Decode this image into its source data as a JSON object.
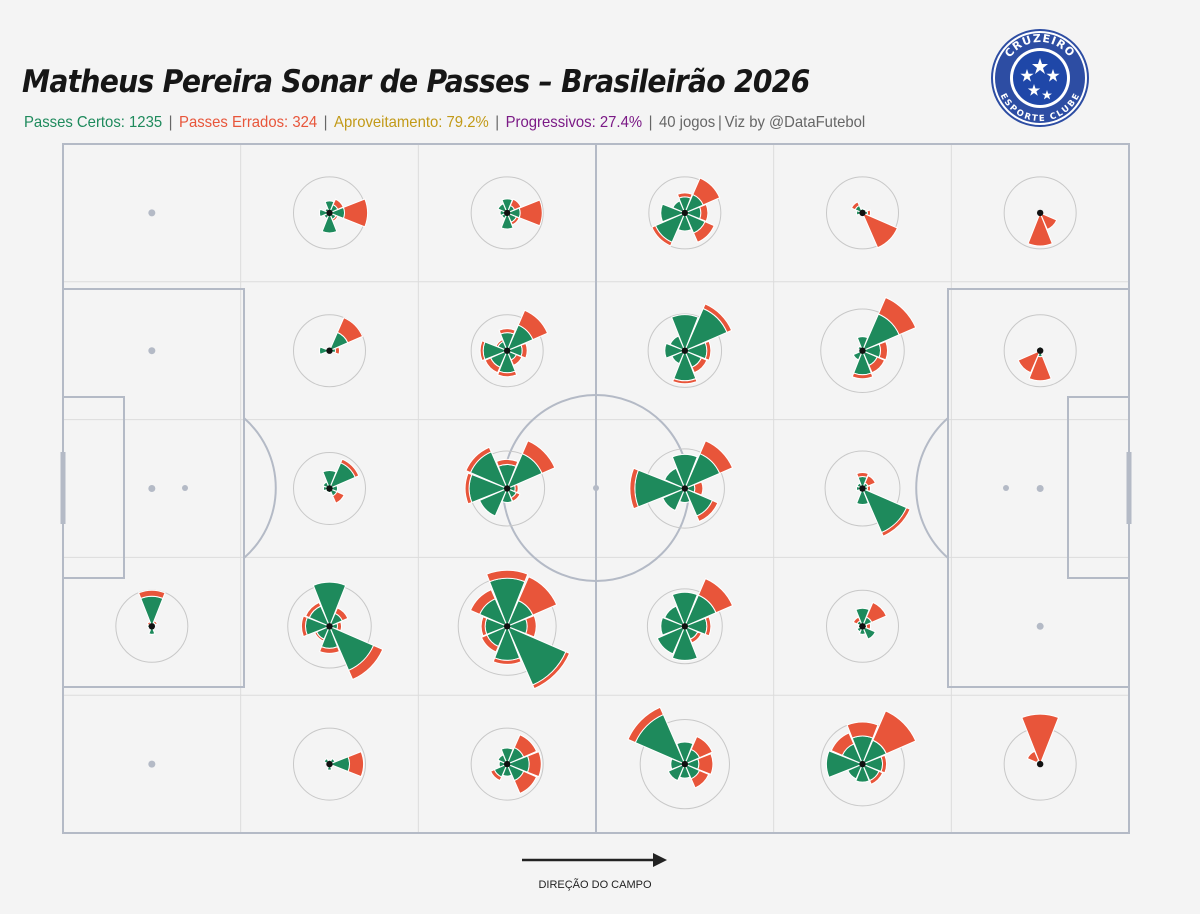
{
  "header": {
    "title": "Matheus Pereira Sonar de Passes – Brasileirão 2026",
    "stats": [
      {
        "text": "Passes Certos: 1235",
        "color": "#1e8a5c"
      },
      {
        "text": "Passes Errados: 324",
        "color": "#e8553a"
      },
      {
        "text": "Aproveitamento: 79.2%",
        "color": "#c29a18"
      },
      {
        "text": "Progressivos: 27.4%",
        "color": "#7b1a86"
      },
      {
        "text": "40 jogos",
        "color": "#666666"
      },
      {
        "text": "Viz by @DataFutebol",
        "color": "#666666"
      }
    ],
    "separator": "|"
  },
  "logo": {
    "top_text": "CRUZEIRO",
    "bottom_text": "ESPORTE CLUBE",
    "colors": {
      "ring": "#2d4da3",
      "field": "#1f47a8",
      "stars": "#ffffff"
    }
  },
  "direction": {
    "label": "DIREÇÃO DO CAMPO",
    "icon": "arrow-right-icon"
  },
  "colors": {
    "success": "#1e8a5c",
    "failure": "#e8553a",
    "pitch_line": "#b4bac6",
    "grid_line": "#dcdcdc",
    "ring": "#c8c8c8",
    "background": "#f4f4f4"
  },
  "chart_data": {
    "type": "polar-bar-grid",
    "grid": {
      "columns": 6,
      "rows": 5
    },
    "sector_order": [
      "E",
      "NE",
      "N",
      "NW",
      "W",
      "SW",
      "S",
      "SE"
    ],
    "legend": [
      "Passes Certos",
      "Passes Errados"
    ],
    "zones": [
      {
        "col": 0,
        "row": 0,
        "success": [
          0,
          0,
          0,
          0,
          0,
          0,
          0,
          0
        ],
        "fail": [
          0,
          0,
          0,
          0,
          0,
          0,
          0,
          0
        ]
      },
      {
        "col": 1,
        "row": 0,
        "success": [
          15,
          9,
          12,
          5,
          10,
          6,
          20,
          7
        ],
        "fail": [
          23,
          6,
          0,
          0,
          0,
          0,
          0,
          2
        ]
      },
      {
        "col": 2,
        "row": 0,
        "success": [
          13,
          8,
          14,
          10,
          7,
          6,
          16,
          10
        ],
        "fail": [
          22,
          7,
          0,
          0,
          0,
          0,
          0,
          3
        ]
      },
      {
        "col": 3,
        "row": 0,
        "success": [
          16,
          20,
          16,
          13,
          24,
          32,
          18,
          22
        ],
        "fail": [
          7,
          18,
          4,
          0,
          0,
          4,
          0,
          10
        ]
      },
      {
        "col": 4,
        "row": 0,
        "success": [
          5,
          4,
          4,
          8,
          6,
          0,
          0,
          0
        ],
        "fail": [
          3,
          0,
          0,
          4,
          0,
          0,
          0,
          38
        ]
      },
      {
        "col": 5,
        "row": 0,
        "success": [
          0,
          0,
          0,
          0,
          0,
          0,
          0,
          0
        ],
        "fail": [
          0,
          0,
          0,
          0,
          0,
          0,
          33,
          18
        ]
      },
      {
        "col": 0,
        "row": 1,
        "success": [
          0,
          0,
          0,
          0,
          0,
          0,
          0,
          0
        ],
        "fail": [
          0,
          0,
          0,
          0,
          0,
          0,
          0,
          0
        ]
      },
      {
        "col": 1,
        "row": 1,
        "success": [
          6,
          20,
          0,
          0,
          10,
          2,
          0,
          0
        ],
        "fail": [
          4,
          16,
          0,
          0,
          0,
          0,
          0,
          0
        ]
      },
      {
        "col": 2,
        "row": 1,
        "success": [
          15,
          28,
          18,
          10,
          24,
          18,
          22,
          10
        ],
        "fail": [
          5,
          16,
          4,
          2,
          3,
          6,
          4,
          6
        ]
      },
      {
        "col": 3,
        "row": 1,
        "success": [
          22,
          46,
          36,
          16,
          20,
          14,
          30,
          18
        ],
        "fail": [
          4,
          5,
          0,
          0,
          0,
          0,
          3,
          6
        ]
      },
      {
        "col": 4,
        "row": 1,
        "success": [
          18,
          40,
          14,
          5,
          3,
          10,
          24,
          16
        ],
        "fail": [
          7,
          18,
          0,
          0,
          0,
          0,
          4,
          8
        ]
      },
      {
        "col": 5,
        "row": 1,
        "success": [
          0,
          0,
          4,
          0,
          0,
          0,
          6,
          0
        ],
        "fail": [
          0,
          0,
          0,
          0,
          0,
          24,
          24,
          0
        ]
      },
      {
        "col": 0,
        "row": 2,
        "success": [
          0,
          0,
          0,
          0,
          0,
          0,
          0,
          0
        ],
        "fail": [
          0,
          0,
          0,
          0,
          0,
          0,
          0,
          0
        ]
      },
      {
        "col": 1,
        "row": 2,
        "success": [
          8,
          28,
          18,
          7,
          6,
          4,
          4,
          8
        ],
        "fail": [
          0,
          4,
          0,
          0,
          0,
          0,
          0,
          8
        ]
      },
      {
        "col": 2,
        "row": 2,
        "success": [
          8,
          38,
          24,
          40,
          38,
          30,
          14,
          10
        ],
        "fail": [
          3,
          14,
          5,
          5,
          4,
          0,
          0,
          4
        ]
      },
      {
        "col": 3,
        "row": 2,
        "success": [
          10,
          38,
          34,
          22,
          50,
          24,
          14,
          30
        ],
        "fail": [
          8,
          14,
          0,
          0,
          5,
          0,
          0,
          6
        ]
      },
      {
        "col": 4,
        "row": 2,
        "success": [
          5,
          6,
          12,
          6,
          6,
          4,
          16,
          48
        ],
        "fail": [
          3,
          8,
          4,
          0,
          0,
          0,
          0,
          4
        ]
      },
      {
        "col": 5,
        "row": 2,
        "success": [
          0,
          0,
          0,
          0,
          0,
          0,
          0,
          0
        ],
        "fail": [
          0,
          0,
          0,
          0,
          0,
          0,
          0,
          0
        ]
      },
      {
        "col": 0,
        "row": 3,
        "success": [
          3,
          4,
          30,
          3,
          4,
          2,
          8,
          2
        ],
        "fail": [
          0,
          2,
          6,
          2,
          0,
          0,
          0,
          0
        ]
      },
      {
        "col": 1,
        "row": 3,
        "success": [
          8,
          14,
          44,
          22,
          24,
          14,
          22,
          48
        ],
        "fail": [
          4,
          6,
          0,
          4,
          4,
          2,
          5,
          10
        ]
      },
      {
        "col": 2,
        "row": 3,
        "success": [
          20,
          28,
          48,
          30,
          22,
          22,
          34,
          64
        ],
        "fail": [
          9,
          26,
          8,
          10,
          4,
          6,
          4,
          4
        ]
      },
      {
        "col": 3,
        "row": 3,
        "success": [
          22,
          34,
          34,
          22,
          24,
          30,
          34,
          14
        ],
        "fail": [
          4,
          18,
          0,
          0,
          0,
          0,
          0,
          4
        ]
      },
      {
        "col": 4,
        "row": 3,
        "success": [
          4,
          10,
          18,
          6,
          4,
          6,
          8,
          14
        ],
        "fail": [
          4,
          16,
          0,
          4,
          0,
          0,
          0,
          0
        ]
      },
      {
        "col": 5,
        "row": 3,
        "success": [
          0,
          0,
          0,
          0,
          0,
          0,
          0,
          0
        ],
        "fail": [
          0,
          0,
          0,
          0,
          0,
          0,
          0,
          0
        ]
      },
      {
        "col": 0,
        "row": 4,
        "success": [
          0,
          0,
          0,
          0,
          0,
          0,
          0,
          0
        ],
        "fail": [
          0,
          0,
          0,
          0,
          0,
          0,
          0,
          0
        ]
      },
      {
        "col": 1,
        "row": 4,
        "success": [
          20,
          6,
          4,
          6,
          0,
          3,
          6,
          2
        ],
        "fail": [
          14,
          0,
          0,
          0,
          0,
          0,
          0,
          0
        ]
      },
      {
        "col": 2,
        "row": 4,
        "success": [
          22,
          18,
          16,
          10,
          8,
          14,
          12,
          18
        ],
        "fail": [
          12,
          14,
          0,
          0,
          0,
          4,
          0,
          14
        ]
      },
      {
        "col": 3,
        "row": 4,
        "success": [
          14,
          16,
          22,
          54,
          14,
          18,
          14,
          16
        ],
        "fail": [
          14,
          14,
          0,
          8,
          0,
          0,
          0,
          10
        ]
      },
      {
        "col": 4,
        "row": 4,
        "success": [
          20,
          26,
          28,
          22,
          36,
          16,
          18,
          18
        ],
        "fail": [
          4,
          32,
          14,
          12,
          0,
          0,
          0,
          4
        ]
      },
      {
        "col": 5,
        "row": 4,
        "success": [
          0,
          0,
          0,
          4,
          0,
          0,
          0,
          0
        ],
        "fail": [
          0,
          0,
          50,
          10,
          0,
          0,
          0,
          0
        ]
      }
    ]
  }
}
